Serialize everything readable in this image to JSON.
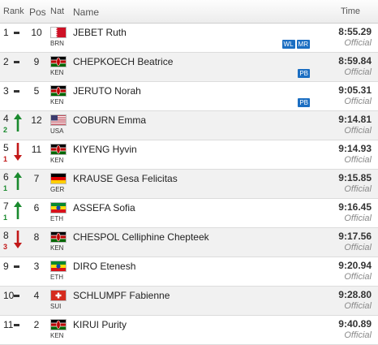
{
  "header": {
    "rank": "Rank",
    "pos": "Pos",
    "nat": "Nat",
    "name": "Name",
    "time": "Time"
  },
  "colors": {
    "up": "#1a8a2e",
    "down": "#c21818",
    "badge": "#1b6ec2"
  },
  "rows": [
    {
      "rank": "1",
      "move_dir": "none",
      "move": "",
      "pos": "10",
      "nat": "BRN",
      "flag": "flag-bahrain",
      "name": "JEBET Ruth",
      "time": "8:55.29",
      "status": "Official",
      "badges": [
        "WL",
        "MR"
      ]
    },
    {
      "rank": "2",
      "move_dir": "none",
      "move": "",
      "pos": "9",
      "nat": "KEN",
      "flag": "flag-kenya",
      "name": "CHEPKOECH Beatrice",
      "time": "8:59.84",
      "status": "Official",
      "badges": [
        "PB"
      ]
    },
    {
      "rank": "3",
      "move_dir": "none",
      "move": "",
      "pos": "5",
      "nat": "KEN",
      "flag": "flag-kenya",
      "name": "JERUTO Norah",
      "time": "9:05.31",
      "status": "Official",
      "badges": [
        "PB"
      ]
    },
    {
      "rank": "4",
      "move_dir": "up",
      "move": "2",
      "pos": "12",
      "nat": "USA",
      "flag": "flag-usa",
      "name": "COBURN Emma",
      "time": "9:14.81",
      "status": "Official",
      "badges": []
    },
    {
      "rank": "5",
      "move_dir": "down",
      "move": "1",
      "pos": "11",
      "nat": "KEN",
      "flag": "flag-kenya",
      "name": "KIYENG Hyvin",
      "time": "9:14.93",
      "status": "Official",
      "badges": []
    },
    {
      "rank": "6",
      "move_dir": "up",
      "move": "1",
      "pos": "7",
      "nat": "GER",
      "flag": "flag-germany",
      "name": "KRAUSE Gesa Felicitas",
      "time": "9:15.85",
      "status": "Official",
      "badges": []
    },
    {
      "rank": "7",
      "move_dir": "up",
      "move": "1",
      "pos": "6",
      "nat": "ETH",
      "flag": "flag-ethiopia",
      "name": "ASSEFA Sofia",
      "time": "9:16.45",
      "status": "Official",
      "badges": []
    },
    {
      "rank": "8",
      "move_dir": "down",
      "move": "3",
      "pos": "8",
      "nat": "KEN",
      "flag": "flag-kenya",
      "name": "CHESPOL Celliphine Chepteek",
      "time": "9:17.56",
      "status": "Official",
      "badges": []
    },
    {
      "rank": "9",
      "move_dir": "none",
      "move": "",
      "pos": "3",
      "nat": "ETH",
      "flag": "flag-ethiopia",
      "name": "DIRO Etenesh",
      "time": "9:20.94",
      "status": "Official",
      "badges": []
    },
    {
      "rank": "10",
      "move_dir": "none",
      "move": "",
      "pos": "4",
      "nat": "SUI",
      "flag": "flag-switzerland",
      "name": "SCHLUMPF Fabienne",
      "time": "9:28.80",
      "status": "Official",
      "badges": []
    },
    {
      "rank": "11",
      "move_dir": "none",
      "move": "",
      "pos": "2",
      "nat": "KEN",
      "flag": "flag-kenya",
      "name": "KIRUI Purity",
      "time": "9:40.89",
      "status": "Official",
      "badges": []
    }
  ]
}
